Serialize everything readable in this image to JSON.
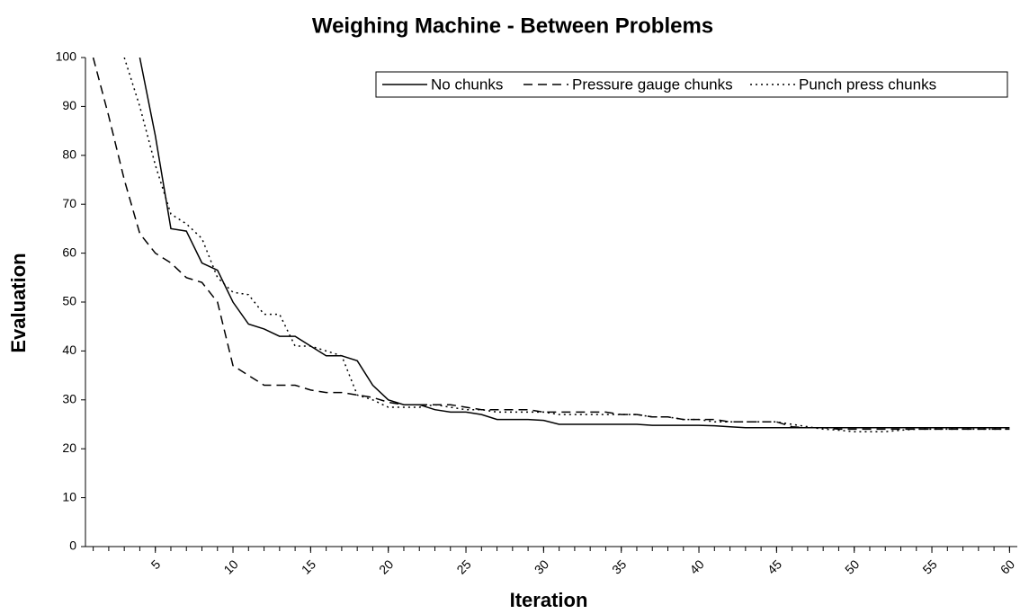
{
  "chart_data": {
    "type": "line",
    "title": "Weighing Machine - Between Problems",
    "x_label": "Iteration",
    "y_label": "Evaluation",
    "x": [
      1,
      2,
      3,
      4,
      5,
      6,
      7,
      8,
      9,
      10,
      11,
      12,
      13,
      14,
      15,
      16,
      17,
      18,
      19,
      20,
      21,
      22,
      23,
      24,
      25,
      26,
      27,
      28,
      29,
      30,
      31,
      32,
      33,
      34,
      35,
      36,
      37,
      38,
      39,
      40,
      41,
      42,
      43,
      44,
      45,
      46,
      47,
      48,
      49,
      50,
      51,
      52,
      53,
      54,
      55,
      56,
      57,
      58,
      59,
      60
    ],
    "xlim": [
      0.5,
      60.5
    ],
    "xticks": [
      5,
      10,
      15,
      20,
      25,
      30,
      35,
      40,
      45,
      50,
      55,
      60
    ],
    "ylim": [
      0,
      100
    ],
    "yticks": [
      0,
      10,
      20,
      30,
      40,
      50,
      60,
      70,
      80,
      90,
      100
    ],
    "grid": false,
    "legend": "top-right",
    "series": [
      {
        "name": "No chunks",
        "color": "#000000",
        "dash": "solid",
        "values": [
          null,
          null,
          null,
          100,
          84,
          65,
          64.5,
          58,
          56.5,
          50,
          45.5,
          44.5,
          43,
          43,
          41,
          39,
          39,
          38,
          33,
          30,
          29,
          29,
          28,
          27.5,
          27.5,
          27,
          26,
          26,
          26,
          25.8,
          25,
          25,
          25,
          25,
          25,
          25,
          24.8,
          24.8,
          24.8,
          24.8,
          24.7,
          24.5,
          24.3,
          24.3,
          24.3,
          24.3,
          24.3,
          24.3,
          24.3,
          24.3,
          24.3,
          24.3,
          24.3,
          24.3,
          24.3,
          24.3,
          24.3,
          24.3,
          24.3,
          24.3
        ]
      },
      {
        "name": "Pressure gauge chunks",
        "color": "#000000",
        "dash": "dashed",
        "values": [
          100,
          88,
          75,
          64,
          60,
          58,
          55,
          54,
          50,
          37,
          35,
          33,
          33,
          33,
          32,
          31.5,
          31.5,
          31,
          30.5,
          29.5,
          29,
          29,
          29,
          29,
          28.5,
          28,
          28,
          28,
          28,
          27.5,
          27.5,
          27.5,
          27.5,
          27.5,
          27,
          27,
          26.5,
          26.5,
          26,
          26,
          26,
          25.5,
          25.5,
          25.5,
          25.5,
          24.5,
          24.3,
          24.3,
          24,
          24,
          24,
          24,
          24,
          24,
          24,
          24,
          24,
          24,
          24,
          24
        ]
      },
      {
        "name": "Punch press chunks",
        "color": "#000000",
        "dash": "dotted",
        "values": [
          null,
          null,
          100,
          90,
          78,
          68,
          66,
          63,
          55,
          52,
          51.5,
          47.5,
          47.5,
          41,
          41,
          40,
          39,
          31,
          30,
          28.5,
          28.5,
          28.5,
          29,
          28.5,
          28,
          28,
          27.5,
          27.5,
          27.5,
          27.5,
          27,
          27,
          27,
          27,
          27,
          27,
          26.5,
          26.5,
          26,
          26,
          25.5,
          25.5,
          25.5,
          25.5,
          25.5,
          25,
          24.5,
          24,
          23.8,
          23.5,
          23.5,
          23.5,
          23.8,
          24,
          24,
          24,
          24,
          24,
          24,
          24
        ]
      }
    ]
  }
}
